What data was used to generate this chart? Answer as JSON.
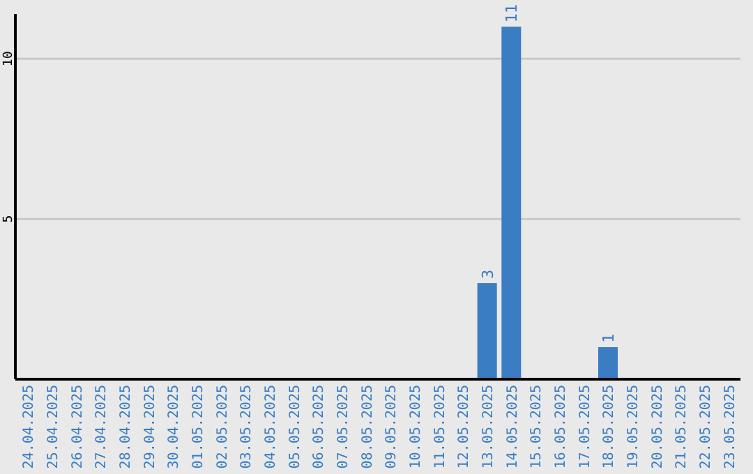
{
  "chart_data": {
    "type": "bar",
    "categories": [
      "24.04.2025",
      "25.04.2025",
      "26.04.2025",
      "27.04.2025",
      "28.04.2025",
      "29.04.2025",
      "30.04.2025",
      "01.05.2025",
      "02.05.2025",
      "03.05.2025",
      "04.05.2025",
      "05.05.2025",
      "06.05.2025",
      "07.05.2025",
      "08.05.2025",
      "09.05.2025",
      "10.05.2025",
      "11.05.2025",
      "12.05.2025",
      "13.05.2025",
      "14.05.2025",
      "15.05.2025",
      "16.05.2025",
      "17.05.2025",
      "18.05.2025",
      "19.05.2025",
      "20.05.2025",
      "21.05.2025",
      "22.05.2025",
      "23.05.2025"
    ],
    "values": [
      0,
      0,
      0,
      0,
      0,
      0,
      0,
      0,
      0,
      0,
      0,
      0,
      0,
      0,
      0,
      0,
      0,
      0,
      0,
      3,
      11,
      0,
      0,
      0,
      1,
      0,
      0,
      0,
      0,
      0
    ],
    "value_labels": [
      null,
      null,
      null,
      null,
      null,
      null,
      null,
      null,
      null,
      null,
      null,
      null,
      null,
      null,
      null,
      null,
      null,
      null,
      null,
      "3",
      "11",
      null,
      null,
      null,
      "1",
      null,
      null,
      null,
      null,
      null
    ],
    "color": "#3a7dc2",
    "ylim": [
      0,
      11.4
    ],
    "yticks": [
      5,
      10
    ],
    "grid": "y"
  }
}
